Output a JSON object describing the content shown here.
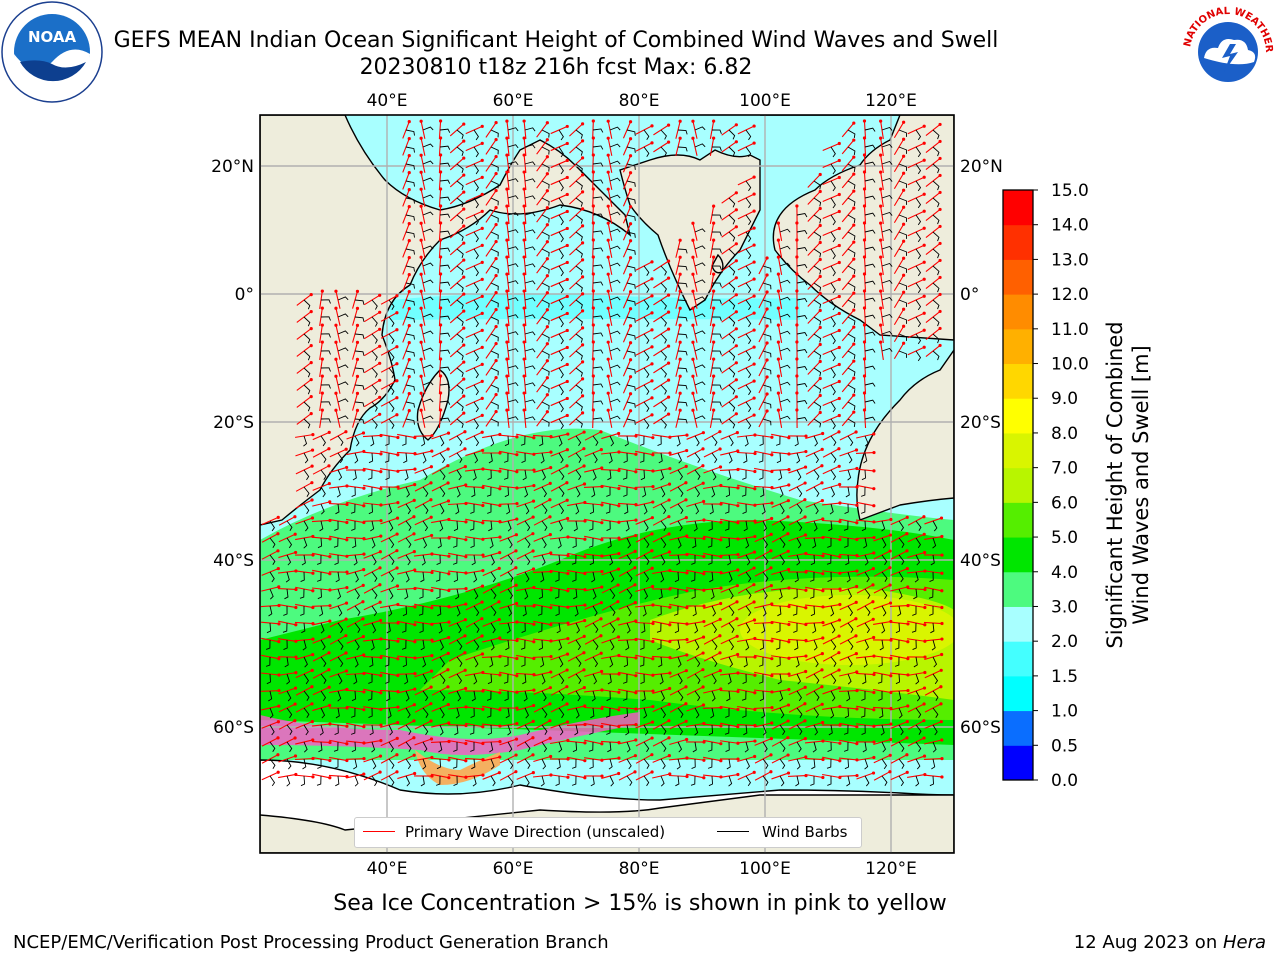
{
  "title": {
    "line1": "GEFS MEAN Indian Ocean Significant Height of Combined Wind Waves and Swell",
    "line2": "20230810 t18z 216h fcst   Max: 6.82"
  },
  "map": {
    "top_lon_ticks": [
      "40°E",
      "60°E",
      "80°E",
      "100°E",
      "120°E"
    ],
    "bottom_lon_ticks": [
      "40°E",
      "60°E",
      "80°E",
      "100°E",
      "120°E"
    ],
    "left_lat_ticks": [
      "20°N",
      "0°",
      "20°S",
      "40°S",
      "60°S"
    ],
    "right_lat_ticks": [
      "20°N",
      "0°",
      "20°S",
      "40°S",
      "60°S"
    ],
    "land_color": "#eeeddc",
    "grid_color": "#b0b0b0"
  },
  "legend": {
    "wave_label": "Primary Wave Direction (unscaled)",
    "wind_label": "Wind Barbs",
    "wave_color": "#ff0000",
    "wind_color": "#000000"
  },
  "colorbar": {
    "label_line1": "Significant Height of Combined",
    "label_line2": "Wind Waves and Swell [m]",
    "ticks": [
      "0.0",
      "0.5",
      "1.0",
      "1.5",
      "2.0",
      "3.0",
      "4.0",
      "5.0",
      "6.0",
      "7.0",
      "8.0",
      "9.0",
      "10.0",
      "11.0",
      "12.0",
      "13.0",
      "14.0",
      "15.0"
    ],
    "colors": [
      "#0000ff",
      "#0a6eff",
      "#00ffff",
      "#44ffff",
      "#a8ffff",
      "#4dfa7f",
      "#00e600",
      "#55ee00",
      "#b8f500",
      "#d9f500",
      "#ffff00",
      "#ffd700",
      "#ffb000",
      "#ff8c00",
      "#ff6000",
      "#ff3000",
      "#ff0000"
    ]
  },
  "ice_note": "Sea Ice Concentration > 15% is shown in pink to yellow",
  "footer": {
    "left": "NCEP/EMC/Verification Post Processing Product Generation Branch",
    "right_prefix": "12 Aug 2023 on ",
    "right_host": "Hera"
  },
  "logos": {
    "noaa_text": "NOAA",
    "nws_text": "NATIONAL WEATHER SERVICE"
  }
}
